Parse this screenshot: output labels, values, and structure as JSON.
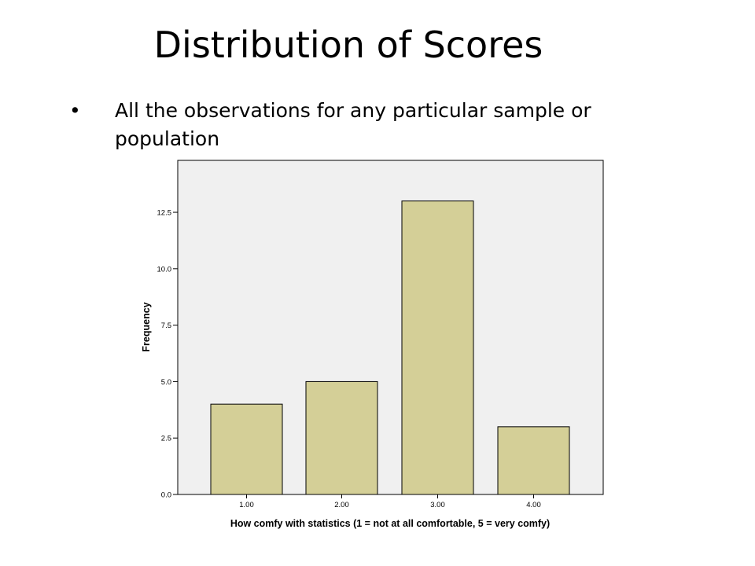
{
  "slide": {
    "title": "Distribution of Scores",
    "bullet": "All the observations for any particular sample or population"
  },
  "colors": {
    "bar_fill": "#d4cf97",
    "plot_bg": "#f0f0f0",
    "outline": "#000000"
  },
  "chart_data": {
    "type": "bar",
    "categories": [
      "1.00",
      "2.00",
      "3.00",
      "4.00"
    ],
    "values": [
      4,
      5,
      13,
      3
    ],
    "xlabel": "How comfy with statistics (1 = not at all comfortable, 5 = very comfy)",
    "ylabel": "Frequency",
    "ylim": [
      0,
      14.8
    ],
    "yticks": [
      "0.0",
      "2.5",
      "5.0",
      "7.5",
      "10.0",
      "12.5"
    ],
    "ytick_values": [
      0,
      2.5,
      5,
      7.5,
      10,
      12.5
    ],
    "grid": false,
    "legend": "none"
  }
}
